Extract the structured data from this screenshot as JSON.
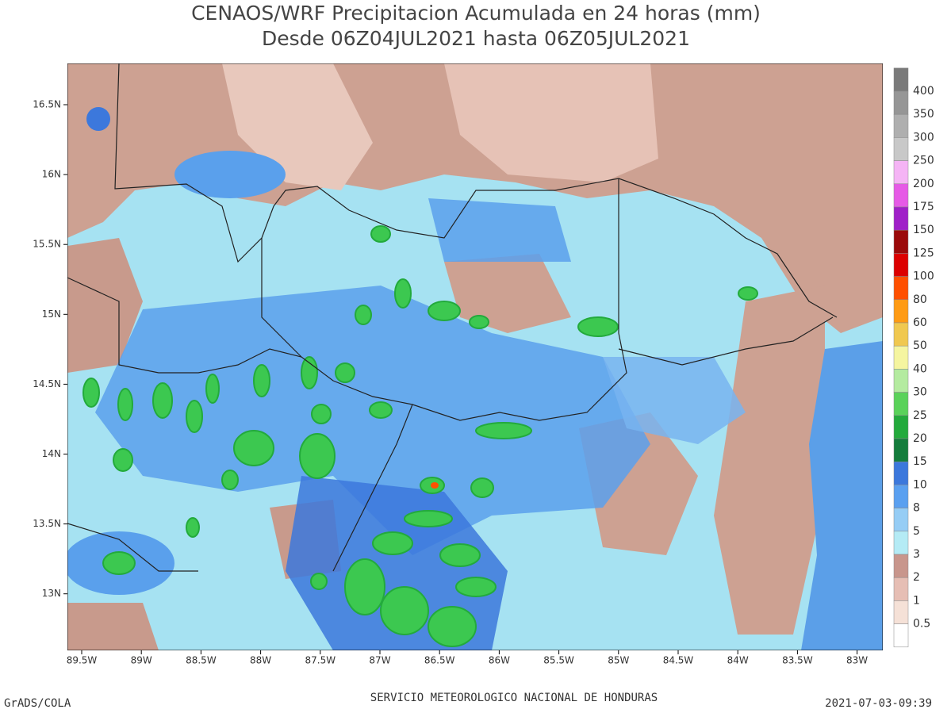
{
  "title": {
    "line1": "CENAOS/WRF Precipitacion Acumulada en 24 horas (mm)",
    "line2": "Desde 06Z04JUL2021 hasta 06Z05JUL2021"
  },
  "map": {
    "lat_labels": [
      "16.5N",
      "16N",
      "15.5N",
      "15N",
      "14.5N",
      "14N",
      "13.5N",
      "13N"
    ],
    "lon_labels": [
      "89.5W",
      "89W",
      "88.5W",
      "88W",
      "87.5W",
      "87W",
      "86.5W",
      "86W",
      "85.5W",
      "85W",
      "84.5W",
      "84W",
      "83.5W",
      "83W"
    ]
  },
  "colorbar": {
    "labels": [
      400,
      350,
      300,
      250,
      200,
      175,
      150,
      125,
      100,
      80,
      60,
      50,
      40,
      30,
      25,
      20,
      15,
      10,
      8,
      5,
      3,
      2,
      1,
      0.5
    ],
    "colors": [
      "#7a7a7a",
      "#969696",
      "#afafaf",
      "#c8c8c8",
      "#f5b4f5",
      "#e65ae6",
      "#a020c8",
      "#9b0a0a",
      "#dc0000",
      "#ff5000",
      "#ff9b14",
      "#f0c850",
      "#f5f5a0",
      "#b4eba0",
      "#5ad25a",
      "#23aa3c",
      "#147d3c",
      "#3c78dc",
      "#5aa0f0",
      "#96cdf5",
      "#b4ebf5",
      "#c8968c",
      "#e6beb4",
      "#f5e1d7",
      "#ffffff"
    ]
  },
  "footer": {
    "left": "GrADS/COLA",
    "center": "SERVICIO METEOROLOGICO NACIONAL DE HONDURAS",
    "right": "2021-07-03-09:39"
  }
}
